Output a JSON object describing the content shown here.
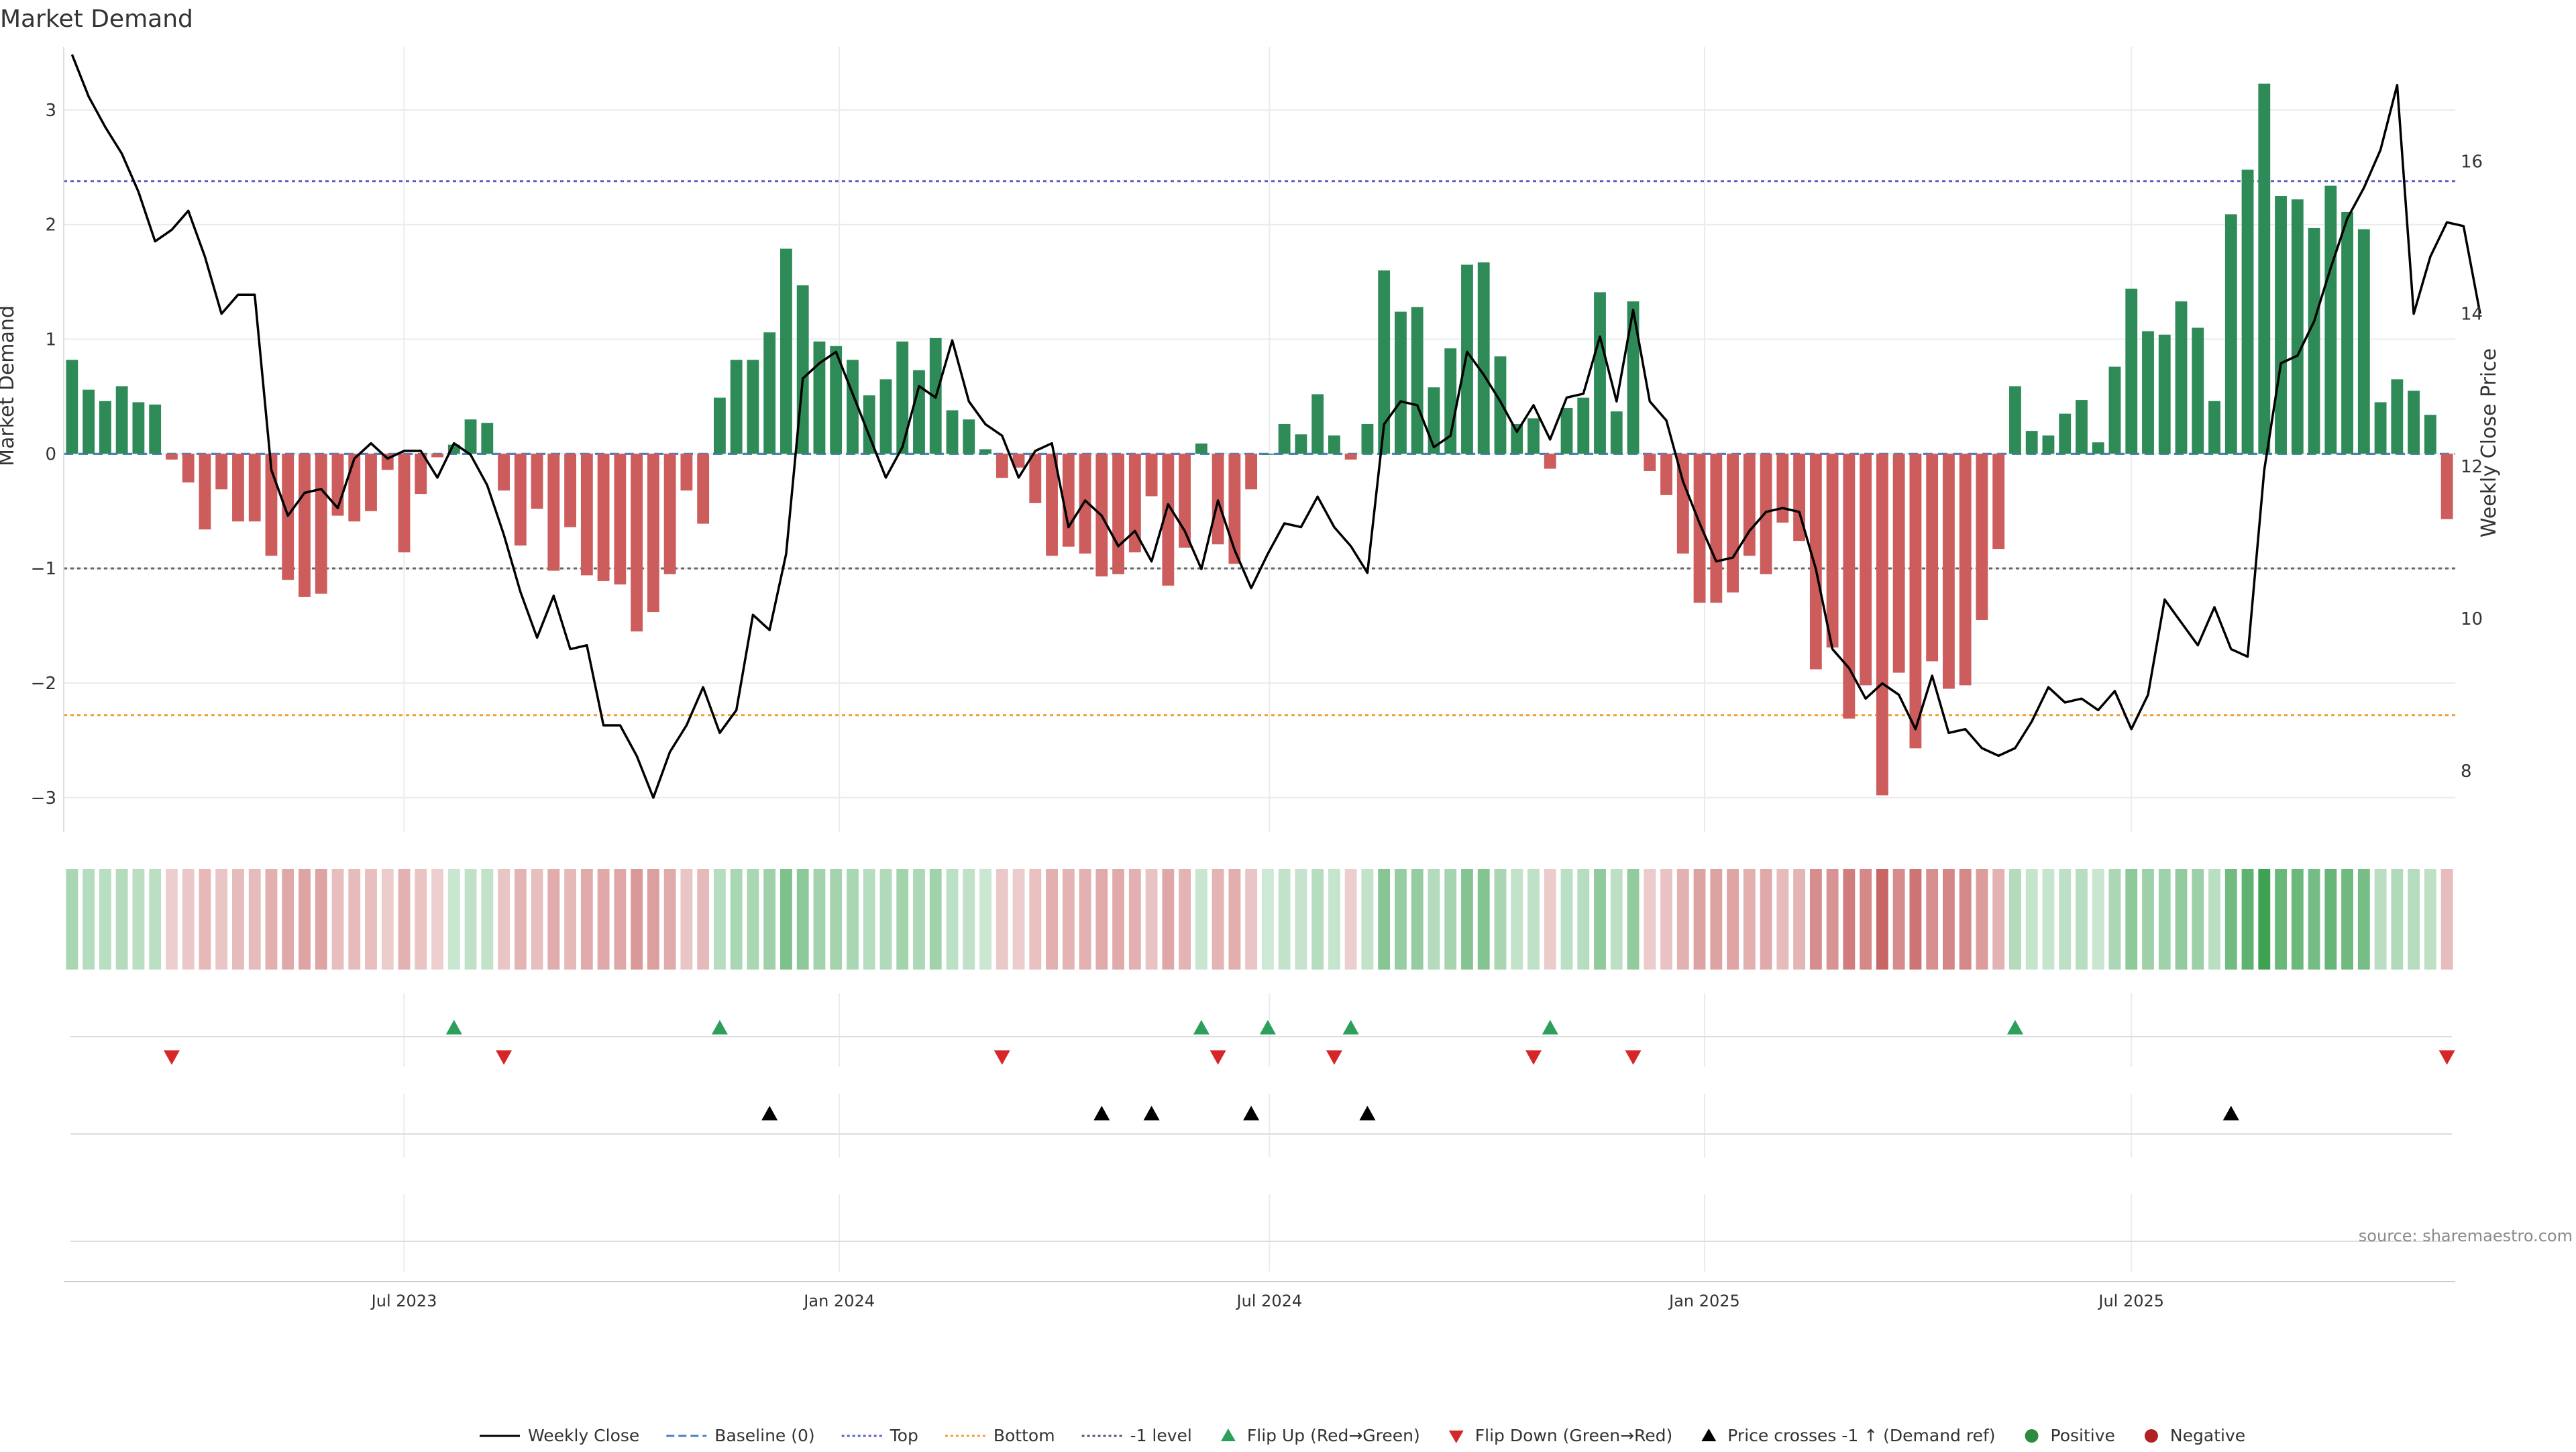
{
  "chart_data": {
    "type": "bar+line",
    "title": "Market Demand",
    "ylabel_left": "Market Demand",
    "ylabel_right": "Weekly Close Price",
    "source": "source: sharemaestro.com",
    "ylim_left": [
      -3.3,
      3.55
    ],
    "ylim_right": [
      7.2,
      17.5
    ],
    "yticks_left": [
      {
        "value": 3,
        "label": "3"
      },
      {
        "value": 2,
        "label": "2"
      },
      {
        "value": 1,
        "label": "1"
      },
      {
        "value": 0,
        "label": "0"
      },
      {
        "value": -1,
        "label": "−1"
      },
      {
        "value": -2,
        "label": "−2"
      },
      {
        "value": -3,
        "label": "−3"
      }
    ],
    "yticks_right": [
      {
        "value": 16,
        "label": "16"
      },
      {
        "value": 14,
        "label": "14"
      },
      {
        "value": 12,
        "label": "12"
      },
      {
        "value": 10,
        "label": "10"
      },
      {
        "value": 8,
        "label": "8"
      }
    ],
    "xticks": [
      {
        "index": 20.5,
        "label": "Jul 2023"
      },
      {
        "index": 46.7,
        "label": "Jan 2024"
      },
      {
        "index": 72.6,
        "label": "Jul 2024"
      },
      {
        "index": 98.8,
        "label": "Jan 2025"
      },
      {
        "index": 124.5,
        "label": "Jul 2025"
      }
    ],
    "reference_lines": [
      {
        "name": "Top",
        "value": 2.38,
        "color": "#5b5fc7",
        "style": "dotted"
      },
      {
        "name": "Bottom",
        "value": -2.28,
        "color": "#f0a030",
        "style": "dotted"
      },
      {
        "name": "-1 level",
        "value": -1.0,
        "color": "#666666",
        "style": "dotted"
      },
      {
        "name": "Baseline (0)",
        "value": 0,
        "color": "#4a7fc1",
        "style": "dashed"
      }
    ],
    "demand": [
      0.82,
      0.56,
      0.46,
      0.59,
      0.45,
      0.43,
      -0.05,
      -0.25,
      -0.66,
      -0.31,
      -0.59,
      -0.59,
      -0.89,
      -1.1,
      -1.25,
      -1.22,
      -0.54,
      -0.59,
      -0.5,
      -0.14,
      -0.86,
      -0.35,
      -0.03,
      0.08,
      0.3,
      0.27,
      -0.32,
      -0.8,
      -0.48,
      -1.02,
      -0.64,
      -1.06,
      -1.11,
      -1.14,
      -1.55,
      -1.38,
      -1.05,
      -0.32,
      -0.61,
      0.49,
      0.82,
      0.82,
      1.06,
      1.79,
      1.47,
      0.98,
      0.94,
      0.82,
      0.51,
      0.65,
      0.98,
      0.73,
      1.01,
      0.38,
      0.3,
      0.04,
      -0.21,
      -0.12,
      -0.43,
      -0.89,
      -0.81,
      -0.87,
      -1.07,
      -1.05,
      -0.86,
      -0.37,
      -1.15,
      -0.82,
      0.09,
      -0.79,
      -0.96,
      -0.31,
      0.0,
      0.26,
      0.17,
      0.52,
      0.16,
      -0.05,
      0.26,
      1.6,
      1.24,
      1.28,
      0.58,
      0.92,
      1.65,
      1.67,
      0.85,
      0.26,
      0.31,
      -0.13,
      0.4,
      0.49,
      1.41,
      0.37,
      1.33,
      -0.15,
      -0.36,
      -0.87,
      -1.3,
      -1.3,
      -1.21,
      -0.89,
      -1.05,
      -0.6,
      -0.76,
      -1.88,
      -1.69,
      -2.31,
      -2.02,
      -2.98,
      -1.91,
      -2.57,
      -1.81,
      -2.05,
      -2.02,
      -1.45,
      -0.83,
      0.59,
      0.2,
      0.16,
      0.35,
      0.47,
      0.1,
      0.76,
      1.44,
      1.07,
      1.04,
      1.33,
      1.1,
      0.46,
      2.09,
      2.48,
      3.23,
      2.25,
      2.22,
      1.97,
      2.34,
      2.11,
      1.96,
      0.45,
      0.65,
      0.55,
      0.34,
      -0.57
    ],
    "close": [
      17.4,
      16.85,
      16.45,
      16.1,
      15.6,
      14.95,
      15.1,
      15.35,
      14.75,
      14.0,
      14.25,
      14.25,
      11.95,
      11.35,
      11.65,
      11.7,
      11.45,
      12.1,
      12.3,
      12.1,
      12.2,
      12.2,
      11.85,
      12.3,
      12.15,
      11.75,
      11.1,
      10.35,
      9.75,
      10.3,
      9.6,
      9.65,
      8.6,
      8.6,
      8.2,
      7.65,
      8.25,
      8.6,
      9.1,
      8.5,
      8.8,
      10.05,
      9.85,
      10.85,
      13.15,
      13.35,
      13.5,
      12.95,
      12.4,
      11.85,
      12.25,
      13.05,
      12.9,
      13.65,
      12.85,
      12.55,
      12.4,
      11.85,
      12.2,
      12.3,
      11.2,
      11.55,
      11.35,
      10.95,
      11.15,
      10.75,
      11.5,
      11.15,
      10.65,
      11.55,
      10.9,
      10.4,
      10.85,
      11.25,
      11.2,
      11.6,
      11.2,
      10.95,
      10.6,
      12.55,
      12.85,
      12.8,
      12.25,
      12.4,
      13.5,
      13.2,
      12.85,
      12.45,
      12.8,
      12.35,
      12.9,
      12.95,
      13.7,
      12.85,
      14.05,
      12.85,
      12.6,
      11.8,
      11.25,
      10.75,
      10.8,
      11.15,
      11.4,
      11.45,
      11.4,
      10.65,
      9.6,
      9.35,
      8.95,
      9.15,
      9.0,
      8.55,
      9.25,
      8.5,
      8.55,
      8.3,
      8.2,
      8.3,
      8.65,
      9.1,
      8.9,
      8.95,
      8.8,
      9.05,
      8.55,
      9.0,
      10.25,
      9.95,
      9.65,
      10.15,
      9.6,
      9.5,
      11.95,
      13.35,
      13.45,
      13.9,
      14.6,
      15.25,
      15.65,
      16.15,
      17.0,
      14.0,
      14.75,
      15.2,
      15.15,
      14.0
    ],
    "flip_up_indices": [
      23,
      39,
      68,
      72,
      77,
      89,
      117
    ],
    "flip_down_indices": [
      6,
      26,
      56,
      69,
      76,
      88,
      94,
      143
    ],
    "price_cross_indices": [
      42,
      62,
      65,
      71,
      78,
      130
    ],
    "legend": [
      {
        "name": "Weekly Close",
        "marker": "line-solid",
        "color": "#000000"
      },
      {
        "name": "Baseline (0)",
        "marker": "line-dashed",
        "color": "#4a7fc1"
      },
      {
        "name": "Top",
        "marker": "line-dotted",
        "color": "#5b5fc7"
      },
      {
        "name": "Bottom",
        "marker": "line-dotted",
        "color": "#f0a030"
      },
      {
        "name": "-1 level",
        "marker": "line-dotted",
        "color": "#555577"
      },
      {
        "name": "Flip Up (Red→Green)",
        "marker": "triangle-up",
        "color": "#2ca05a"
      },
      {
        "name": "Flip Down (Green→Red)",
        "marker": "triangle-down",
        "color": "#d62728"
      },
      {
        "name": "Price crosses -1 ↑ (Demand ref)",
        "marker": "triangle-up",
        "color": "#000000"
      },
      {
        "name": "Positive",
        "marker": "circle",
        "color": "#2b8a3e"
      },
      {
        "name": "Negative",
        "marker": "circle",
        "color": "#b02222"
      }
    ],
    "colors": {
      "positive_bar": "#2e8b57",
      "negative_bar": "#cd5c5c",
      "line": "#000000",
      "grid": "#ebebeb"
    }
  }
}
